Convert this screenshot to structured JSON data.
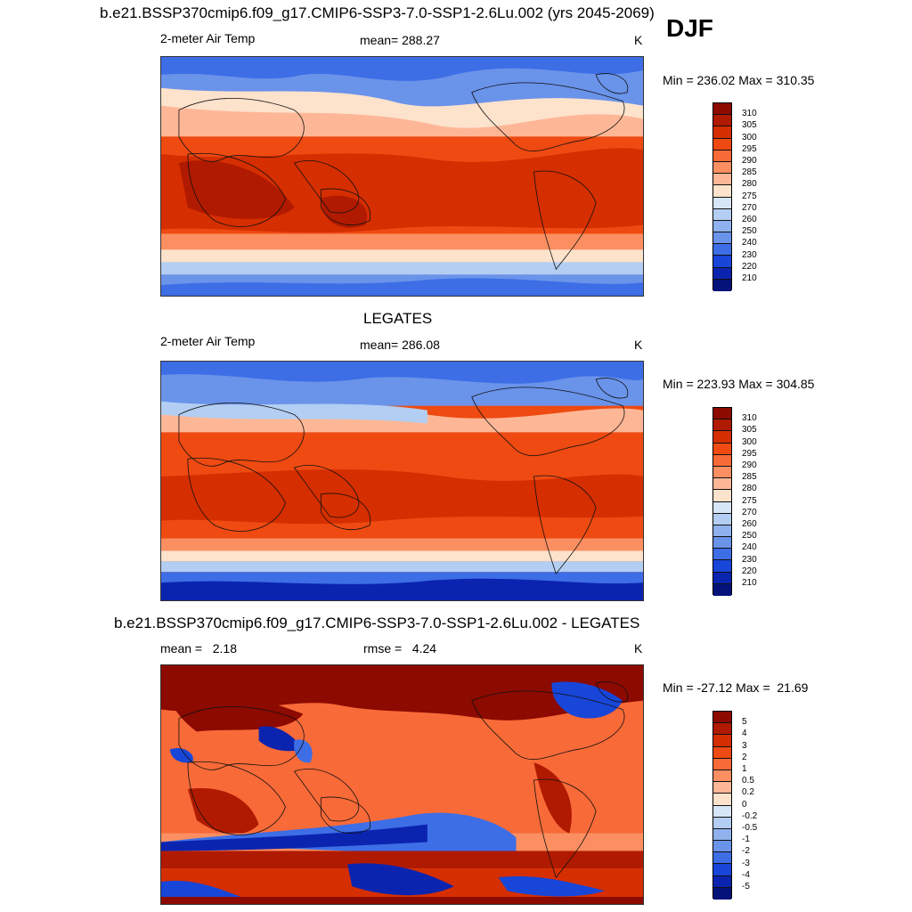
{
  "header": {
    "title": "b.e21.BSSP370cmip6.f09_g17.CMIP6-SSP3-7.0-SSP1-2.6Lu.002 (yrs 2045-2069)",
    "season": "DJF"
  },
  "panels": [
    {
      "id": "model",
      "variable": "2-meter Air Temp",
      "mean_text": "mean= 288.27",
      "units": "K",
      "minmax": "Min = 236.02 Max = 310.35"
    },
    {
      "id": "obs",
      "section_title": "LEGATES",
      "variable": "2-meter Air Temp",
      "mean_text": "mean= 286.08",
      "units": "K",
      "minmax": "Min = 223.93 Max = 304.85"
    },
    {
      "id": "diff",
      "section_title": "b.e21.BSSP370cmip6.f09_g17.CMIP6-SSP3-7.0-SSP1-2.6Lu.002 - LEGATES",
      "mean_text": "mean =   2.18",
      "rmse_text": "rmse =   4.24",
      "units": "K",
      "minmax": "Min = -27.12 Max =  21.69"
    }
  ],
  "colorbars": {
    "temp": {
      "labels": [
        "310",
        "305",
        "300",
        "295",
        "290",
        "285",
        "280",
        "275",
        "270",
        "260",
        "250",
        "240",
        "230",
        "220",
        "210"
      ],
      "colors": [
        "#8c0a00",
        "#b01a00",
        "#d52e00",
        "#ee4a12",
        "#f86a38",
        "#fb8f62",
        "#fdb796",
        "#fde2cc",
        "#d7e6f7",
        "#b3cef2",
        "#8fb2ee",
        "#6a93ea",
        "#3d6ee6",
        "#1846d9",
        "#0b24b0",
        "#05127a"
      ]
    },
    "diff": {
      "labels": [
        "5",
        "4",
        "3",
        "2",
        "1",
        "0.5",
        "0.2",
        "0",
        "-0.2",
        "-0.5",
        "-1",
        "-2",
        "-3",
        "-4",
        "-5"
      ],
      "colors": [
        "#8c0a00",
        "#b01a00",
        "#d52e00",
        "#ee4a12",
        "#f86a38",
        "#fb8f62",
        "#fdb796",
        "#fde2cc",
        "#d7e6f7",
        "#b3cef2",
        "#8fb2ee",
        "#6a93ea",
        "#3d6ee6",
        "#1846d9",
        "#0b24b0",
        "#05127a"
      ]
    }
  }
}
